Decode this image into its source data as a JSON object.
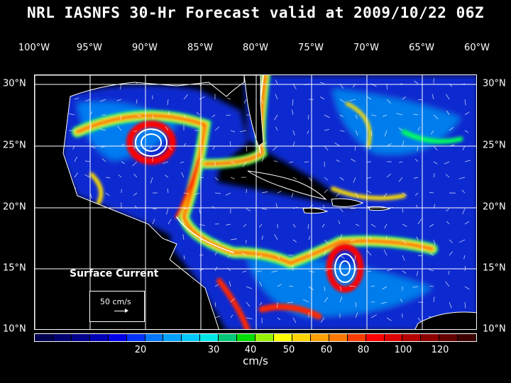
{
  "title": "NRL IASNFS  30-Hr Forecast valid at 2009/10/22 06Z",
  "lon_labels": [
    "100°W",
    "95°W",
    "90°W",
    "85°W",
    "80°W",
    "75°W",
    "70°W",
    "65°W",
    "60°W"
  ],
  "lat_labels": [
    "30°N",
    "25°N",
    "20°N",
    "15°N",
    "10°N"
  ],
  "surface_label": "Surface Current",
  "vector_legend": "50 cm/s",
  "colorbar": {
    "colors": [
      "#000050",
      "#00006e",
      "#00008c",
      "#0000b4",
      "#0000e6",
      "#0032ff",
      "#0078ff",
      "#00a0ff",
      "#00c8ff",
      "#00e6e6",
      "#00c878",
      "#00dc00",
      "#96f000",
      "#ffff00",
      "#ffd200",
      "#ffa000",
      "#ff7800",
      "#ff3c00",
      "#ff0000",
      "#dc0000",
      "#b40000",
      "#8c0000",
      "#640000",
      "#3c0000"
    ],
    "ticks": [
      "20",
      "30",
      "40",
      "50",
      "60",
      "80",
      "100",
      "120"
    ],
    "unit": "cm/s"
  }
}
